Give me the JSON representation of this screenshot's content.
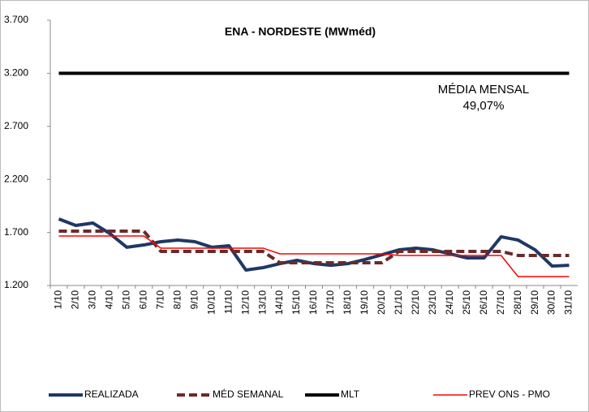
{
  "chart_data": {
    "type": "line",
    "title": "ENA - NORDESTE (MWméd)",
    "annotation": [
      "MÉDIA MENSAL",
      "49,07%"
    ],
    "categories": [
      "1/10",
      "2/10",
      "3/10",
      "4/10",
      "5/10",
      "6/10",
      "7/10",
      "8/10",
      "9/10",
      "10/10",
      "11/10",
      "12/10",
      "13/10",
      "14/10",
      "15/10",
      "16/10",
      "17/10",
      "18/10",
      "19/10",
      "20/10",
      "21/10",
      "22/10",
      "23/10",
      "24/10",
      "25/10",
      "26/10",
      "27/10",
      "28/10",
      "29/10",
      "30/10",
      "31/10"
    ],
    "series": [
      {
        "name": "REALIZADA",
        "color": "#1f3864",
        "style": "solid",
        "width": 4,
        "values": [
          1827,
          1766,
          1789,
          1690,
          1560,
          1582,
          1613,
          1628,
          1613,
          1560,
          1575,
          1345,
          1368,
          1406,
          1437,
          1406,
          1390,
          1406,
          1445,
          1490,
          1536,
          1552,
          1536,
          1498,
          1460,
          1460,
          1659,
          1628,
          1536,
          1383,
          1390
        ]
      },
      {
        "name": "MÉD SEMANAL",
        "color": "#6b2a2a",
        "style": "dashed",
        "width": 4,
        "values": [
          1712,
          1712,
          1712,
          1712,
          1712,
          1712,
          1521,
          1521,
          1521,
          1521,
          1521,
          1521,
          1521,
          1414,
          1414,
          1414,
          1414,
          1414,
          1414,
          1414,
          1521,
          1521,
          1521,
          1521,
          1521,
          1521,
          1521,
          1483,
          1483,
          1483,
          1483
        ]
      },
      {
        "name": "MLT",
        "color": "#000000",
        "style": "solid",
        "width": 4,
        "values": [
          3200,
          3200,
          3200,
          3200,
          3200,
          3200,
          3200,
          3200,
          3200,
          3200,
          3200,
          3200,
          3200,
          3200,
          3200,
          3200,
          3200,
          3200,
          3200,
          3200,
          3200,
          3200,
          3200,
          3200,
          3200,
          3200,
          3200,
          3200,
          3200,
          3200,
          3200
        ]
      },
      {
        "name": "PREV ONS - PMO",
        "color": "#ff0000",
        "style": "solid",
        "width": 1.5,
        "values": [
          1666,
          1666,
          1666,
          1666,
          1666,
          1666,
          1552,
          1552,
          1552,
          1552,
          1552,
          1552,
          1552,
          1498,
          1498,
          1498,
          1498,
          1498,
          1498,
          1498,
          1483,
          1483,
          1483,
          1483,
          1483,
          1483,
          1483,
          1284,
          1284,
          1284,
          1284
        ]
      }
    ],
    "ylim": [
      1200,
      3700
    ],
    "yticks": [
      {
        "value": 1200,
        "label": "1.200"
      },
      {
        "value": 1700,
        "label": "1.700"
      },
      {
        "value": 2200,
        "label": "2.200"
      },
      {
        "value": 2700,
        "label": "2.700"
      },
      {
        "value": 3200,
        "label": "3.200"
      },
      {
        "value": 3700,
        "label": "3.700"
      }
    ],
    "grid": false
  }
}
